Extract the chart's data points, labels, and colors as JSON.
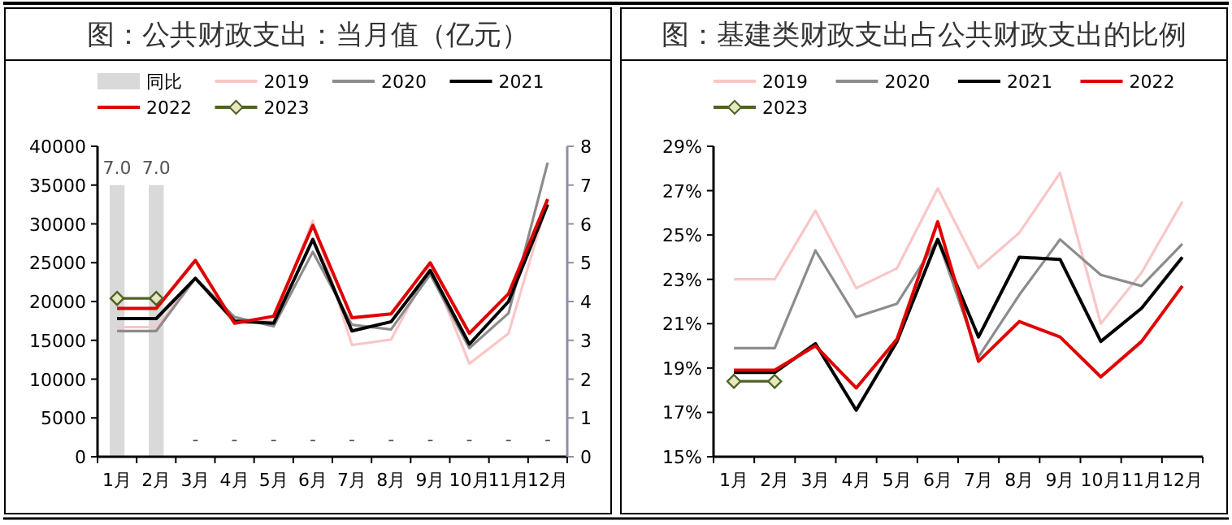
{
  "chart_data": [
    {
      "type": "line",
      "title": "图：公共财政支出：当月值（亿元）",
      "categories": [
        "1月",
        "2月",
        "3月",
        "4月",
        "5月",
        "6月",
        "7月",
        "8月",
        "9月",
        "10月",
        "11月",
        "12月"
      ],
      "series": [
        {
          "name": "同比",
          "type": "bar",
          "axis": "y2",
          "color": "#d9d9d9",
          "values": [
            7.0,
            7.0,
            0,
            0,
            0,
            0,
            0,
            0,
            0,
            0,
            0,
            0
          ],
          "value_labels": [
            "7.0",
            "7.0",
            "-",
            "-",
            "-",
            "-",
            "-",
            "-",
            "-",
            "-",
            "-",
            "-"
          ]
        },
        {
          "name": "2019",
          "color": "#f9c6c6",
          "values": [
            16700,
            16700,
            23000,
            17200,
            17500,
            30400,
            14400,
            15100,
            24500,
            12000,
            15900,
            33000
          ]
        },
        {
          "name": "2020",
          "color": "#8c8c8c",
          "values": [
            16200,
            16200,
            23000,
            18000,
            16800,
            26400,
            17000,
            16400,
            23500,
            14000,
            18500,
            37900
          ]
        },
        {
          "name": "2021",
          "color": "#000000",
          "values": [
            17800,
            17800,
            23000,
            17500,
            17200,
            28000,
            16200,
            17400,
            24000,
            14500,
            20000,
            32500
          ]
        },
        {
          "name": "2022",
          "color": "#e00000",
          "values": [
            19100,
            19100,
            25300,
            17200,
            18100,
            29800,
            17900,
            18400,
            25000,
            15900,
            21000,
            33200
          ]
        },
        {
          "name": "2023",
          "color": "#4f6228",
          "marker": "diamond",
          "values": [
            20400,
            20400,
            null,
            null,
            null,
            null,
            null,
            null,
            null,
            null,
            null,
            null
          ]
        }
      ],
      "ylim": [
        0,
        40000
      ],
      "yticks": [
        0,
        5000,
        10000,
        15000,
        20000,
        25000,
        30000,
        35000,
        40000
      ],
      "y2lim": [
        0,
        8
      ],
      "y2ticks": [
        0,
        1,
        2,
        3,
        4,
        5,
        6,
        7,
        8
      ],
      "legend": "top",
      "grid": false
    },
    {
      "type": "line",
      "title": "图：基建类财政支出占公共财政支出的比例",
      "categories": [
        "1月",
        "2月",
        "3月",
        "4月",
        "5月",
        "6月",
        "7月",
        "8月",
        "9月",
        "10月",
        "11月",
        "12月"
      ],
      "series": [
        {
          "name": "2019",
          "color": "#f9c6c6",
          "values": [
            23.0,
            23.0,
            26.1,
            22.6,
            23.5,
            27.1,
            23.5,
            25.1,
            27.8,
            21.0,
            23.3,
            26.5
          ]
        },
        {
          "name": "2020",
          "color": "#8c8c8c",
          "values": [
            19.9,
            19.9,
            24.3,
            21.3,
            21.9,
            24.8,
            19.5,
            22.3,
            24.8,
            23.2,
            22.7,
            24.6
          ]
        },
        {
          "name": "2021",
          "color": "#000000",
          "values": [
            18.8,
            18.8,
            20.1,
            17.1,
            20.2,
            24.8,
            20.4,
            24.0,
            23.9,
            20.2,
            21.7,
            24.0
          ]
        },
        {
          "name": "2022",
          "color": "#e00000",
          "values": [
            18.9,
            18.9,
            20.0,
            18.1,
            20.3,
            25.6,
            19.3,
            21.1,
            20.4,
            18.6,
            20.2,
            22.7
          ]
        },
        {
          "name": "2023",
          "color": "#4f6228",
          "marker": "diamond",
          "values": [
            18.4,
            18.4,
            null,
            null,
            null,
            null,
            null,
            null,
            null,
            null,
            null,
            null
          ]
        }
      ],
      "ylim": [
        15,
        29
      ],
      "yticks": [
        {
          "value": 15,
          "label": "15%"
        },
        {
          "value": 17,
          "label": "17%"
        },
        {
          "value": 19,
          "label": "19%"
        },
        {
          "value": 21,
          "label": "21%"
        },
        {
          "value": 23,
          "label": "23%"
        },
        {
          "value": 25,
          "label": "25%"
        },
        {
          "value": 27,
          "label": "27%"
        },
        {
          "value": 29,
          "label": "29%"
        }
      ],
      "legend": "top",
      "grid": false
    }
  ]
}
